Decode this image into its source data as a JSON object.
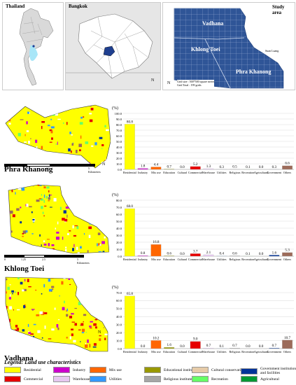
{
  "top": {
    "thailand_label": "Thailand",
    "bangkok_label": "Bangkok",
    "study_area_label": "Study area",
    "district_labels": [
      "Vadhana",
      "Khlong Toei",
      "Phra Khanong"
    ],
    "suan_luang_label": "Suan Luang",
    "grid_size": "Grid size : 500*500 square meter",
    "grid_total": "Grid Total : 199 grids",
    "north_symbol": "N"
  },
  "colors": {
    "Residential": "#ffff00",
    "Industry": "#cc00cc",
    "Mix use": "#ff6600",
    "Educational institution": "#999900",
    "Cultural conservation": "#e6cba8",
    "Government institutions and facilities": "#003399",
    "Commercial": "#e60000",
    "Warehouse": "#e6c8f0",
    "Utilities": "#3399ff",
    "Religious institute": "#a6a6a6",
    "Recreation": "#66ff66",
    "Agricultural": "#009933",
    "Others": "#9c6b5a",
    "study_area_fill": "#2f5597"
  },
  "scale": {
    "ticks": [
      "0",
      "1.25",
      "2.5",
      "5 Kilometers"
    ]
  },
  "chart_data": [
    {
      "type": "bar",
      "district": "Phra Khanong",
      "ylabel": "(%)",
      "ylim": [
        0,
        100
      ],
      "yticks": [
        "0.0",
        "10.0",
        "20.0",
        "30.0",
        "40.0",
        "50.0",
        "60.0",
        "70.0",
        "80.0",
        "90.0",
        "100.0"
      ],
      "categories": [
        "Residential",
        "Industry",
        "Mix use",
        "Education",
        "Cultural",
        "Commercial",
        "Warehouse",
        "Utilities",
        "Religious",
        "Recreation",
        "Agricultural",
        "Government",
        "Others"
      ],
      "values": [
        80.8,
        1.8,
        4.4,
        0.7,
        0.0,
        5.2,
        1.3,
        0.3,
        0.5,
        0.1,
        0.0,
        0.3,
        6.6
      ],
      "labels": [
        "80.8",
        "1.8",
        "4.4",
        "0.7",
        "0.0",
        "5.2",
        "1.3",
        "0.3",
        "0.5",
        "0.1",
        "0.0",
        "0.3",
        "6.6"
      ]
    },
    {
      "type": "bar",
      "district": "Khlong Toei",
      "ylabel": "(%)",
      "ylim": [
        0,
        80
      ],
      "yticks": [
        "0.0",
        "10.0",
        "20.0",
        "30.0",
        "40.0",
        "50.0",
        "60.0",
        "70.0",
        "80.0"
      ],
      "categories": [
        "Residential",
        "Industry",
        "Mix use",
        "Education",
        "Cultural",
        "Commercial",
        "Warehouse",
        "Utilities",
        "Religious",
        "Recreation",
        "Agricultural",
        "Government",
        "Others"
      ],
      "values": [
        68.0,
        0.8,
        16.8,
        0.6,
        0.0,
        3.7,
        2.1,
        0.4,
        0.6,
        0.1,
        0.0,
        1.6,
        5.3
      ],
      "labels": [
        "68.0",
        "0.8",
        "16.8",
        "0.6",
        "0.0",
        "3.7",
        "2.1",
        "0.4",
        "0.6",
        "0.1",
        "0.0",
        "1.6",
        "5.3"
      ]
    },
    {
      "type": "bar",
      "district": "Vadhana",
      "ylabel": "(%)",
      "ylim": [
        0,
        70
      ],
      "yticks": [
        "0.0",
        "10.0",
        "20.0",
        "30.0",
        "40.0",
        "50.0",
        "60.0",
        "70.0"
      ],
      "categories": [
        "Residential",
        "Industry",
        "Mix use",
        "Education",
        "Cultural",
        "Commercial",
        "Warehouse",
        "Utilities",
        "Religious",
        "Recreation",
        "Agricultural",
        "Government",
        "Others"
      ],
      "values": [
        65.8,
        0.0,
        10.2,
        1.6,
        0.0,
        9.0,
        0.7,
        0.1,
        0.7,
        0.0,
        0.0,
        0.7,
        10.7
      ],
      "labels": [
        "65.8",
        "0.0",
        "10.2",
        "1.6",
        "0.0",
        "9.0",
        "0.7",
        "0.1",
        "0.7",
        "0.0",
        "0.0",
        "0.7",
        "10.7"
      ]
    }
  ],
  "category_colors": [
    "#ffff00",
    "#cc00cc",
    "#ff6600",
    "#999900",
    "#e6cba8",
    "#e60000",
    "#e6c8f0",
    "#3399ff",
    "#a6a6a6",
    "#66ff66",
    "#009933",
    "#003399",
    "#9c6b5a"
  ],
  "legend": {
    "title": "Legend: Land use characteristics",
    "row1": [
      "Residential",
      "Industry",
      "Mix use",
      "Educational institution",
      "Cultural conservation",
      "Government institutions and facilities"
    ],
    "row2": [
      "Commercial",
      "Warehouse",
      "Utilities",
      "Religious institute",
      "Recreation",
      "Agricultural"
    ]
  }
}
